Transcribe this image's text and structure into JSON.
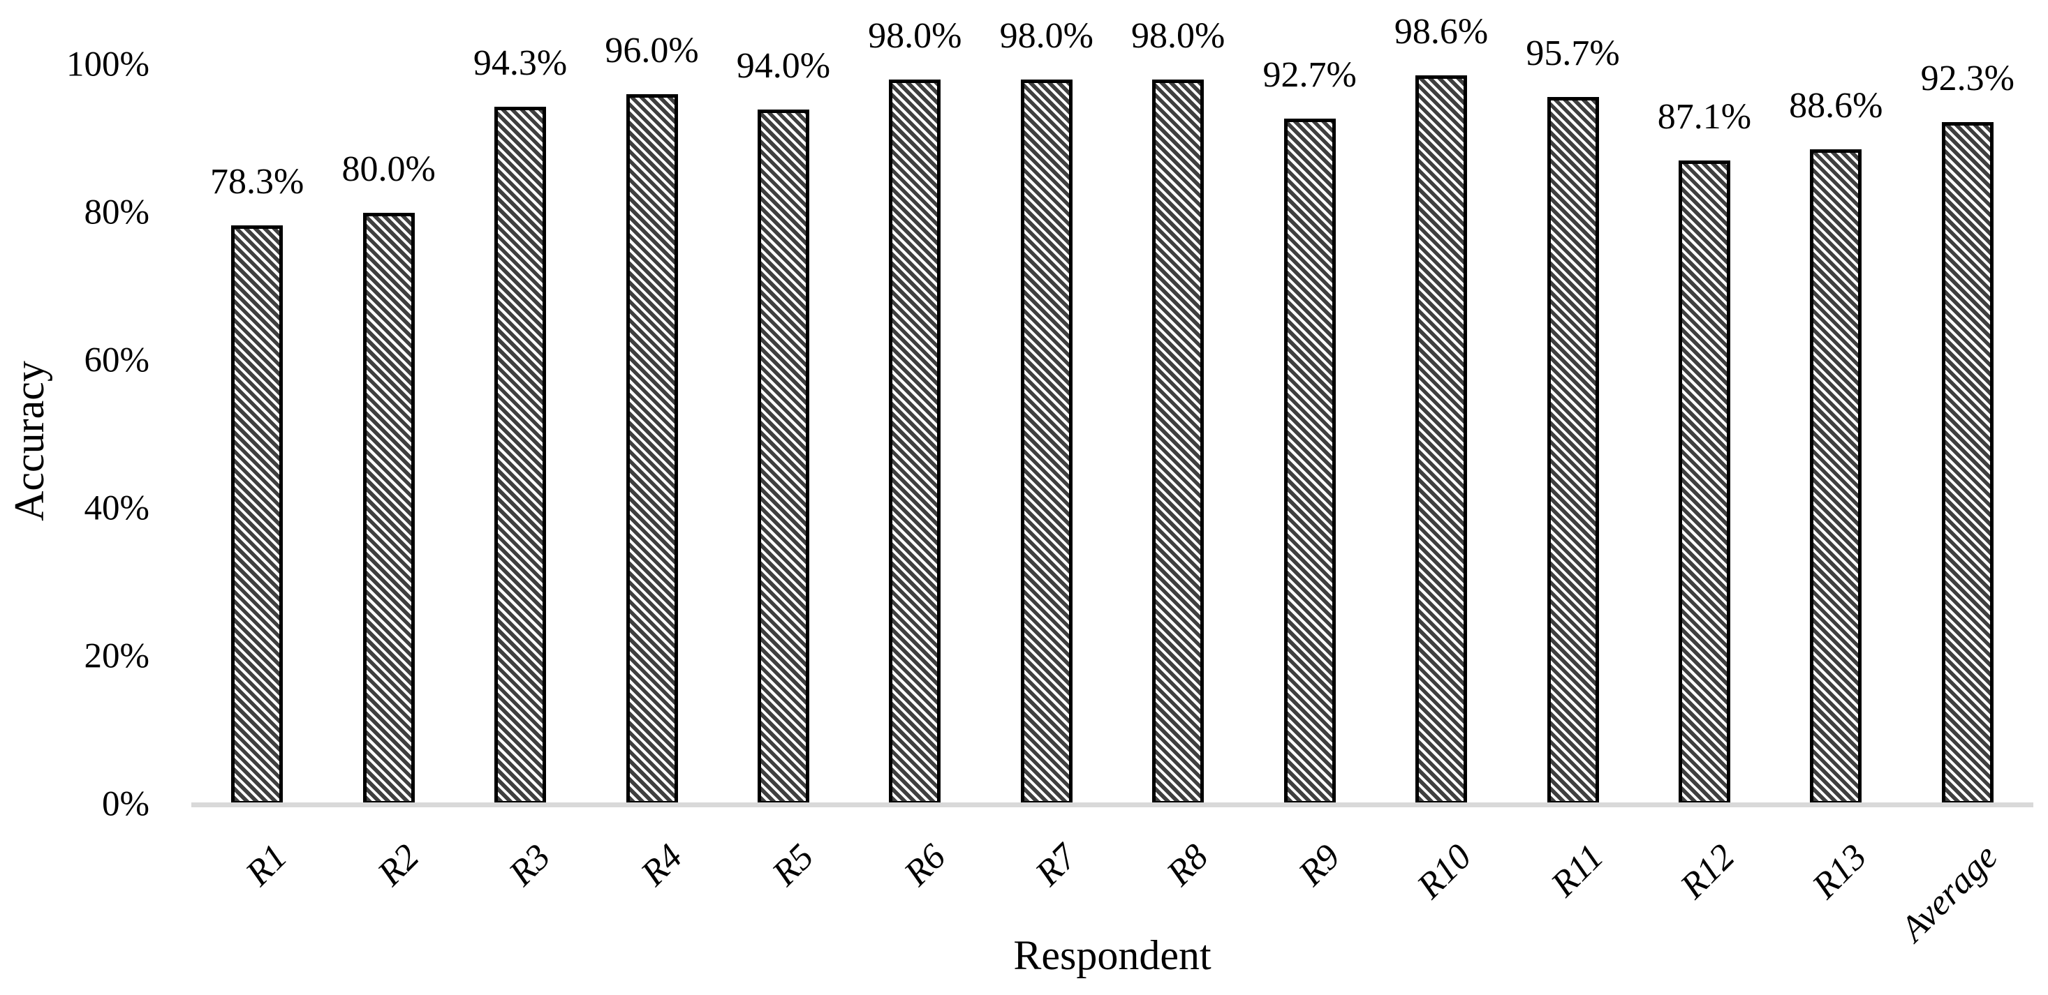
{
  "chart_data": {
    "type": "bar",
    "title": "",
    "xlabel": "Respondent",
    "ylabel": "Accuracy",
    "categories": [
      "R1",
      "R2",
      "R3",
      "R4",
      "R5",
      "R6",
      "R7",
      "R8",
      "R9",
      "R10",
      "R11",
      "R12",
      "R13",
      "Average"
    ],
    "values": [
      78.3,
      80.0,
      94.3,
      96.0,
      94.0,
      98.0,
      98.0,
      98.0,
      92.7,
      98.6,
      95.7,
      87.1,
      88.6,
      92.3
    ],
    "value_labels": [
      "78.3%",
      "80.0%",
      "94.3%",
      "96.0%",
      "94.0%",
      "98.0%",
      "98.0%",
      "98.0%",
      "92.7%",
      "98.6%",
      "95.7%",
      "87.1%",
      "88.6%",
      "92.3%"
    ],
    "yticks": [
      {
        "value": 0,
        "label": "0%"
      },
      {
        "value": 20,
        "label": "20%"
      },
      {
        "value": 40,
        "label": "40%"
      },
      {
        "value": 60,
        "label": "60%"
      },
      {
        "value": 80,
        "label": "80%"
      },
      {
        "value": 100,
        "label": "100%"
      }
    ],
    "ylim": [
      0,
      100
    ],
    "grid": "off",
    "legend": "none",
    "bar_style": {
      "pattern": "dark-downward-diagonal",
      "pattern_color": "#3f3f3f",
      "pattern_bg": "#ffffff",
      "border_color": "#000000"
    },
    "axis_line_color": "#d9d9d9",
    "text_color": "#000000"
  }
}
